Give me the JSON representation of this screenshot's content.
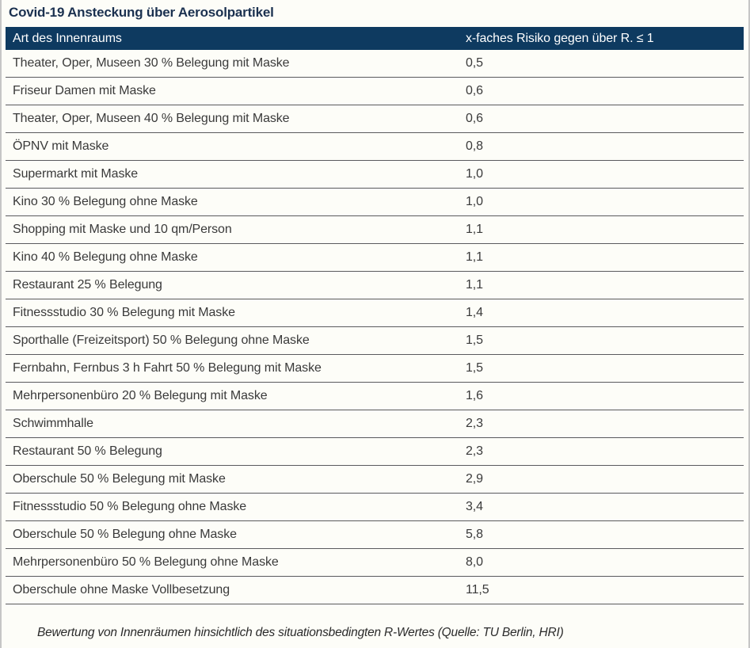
{
  "title": "Covid-19 Ansteckung über Aerosolpartikel",
  "table": {
    "columns": [
      "Art des Innenraums",
      "x-faches Risiko gegen über R. ≤ 1"
    ],
    "rows": [
      [
        "Theater, Oper, Museen 30 % Belegung mit Maske",
        "0,5"
      ],
      [
        "Friseur Damen mit Maske",
        "0,6"
      ],
      [
        "Theater, Oper, Museen 40 % Belegung mit Maske",
        "0,6"
      ],
      [
        "ÖPNV mit Maske",
        "0,8"
      ],
      [
        "Supermarkt mit Maske",
        "1,0"
      ],
      [
        "Kino 30 % Belegung ohne Maske",
        "1,0"
      ],
      [
        "Shopping mit Maske und 10 qm/Person",
        "1,1"
      ],
      [
        "Kino 40 % Belegung ohne Maske",
        "1,1"
      ],
      [
        "Restaurant 25 % Belegung",
        "1,1"
      ],
      [
        "Fitnessstudio 30 % Belegung mit Maske",
        "1,4"
      ],
      [
        "Sporthalle (Freizeitsport) 50 % Belegung ohne Maske",
        "1,5"
      ],
      [
        "Fernbahn, Fernbus 3 h Fahrt 50 % Belegung mit Maske",
        "1,5"
      ],
      [
        "Mehrpersonenbüro 20 % Belegung mit Maske",
        "1,6"
      ],
      [
        "Schwimmhalle",
        "2,3"
      ],
      [
        "Restaurant 50 % Belegung",
        "2,3"
      ],
      [
        "Oberschule 50 % Belegung mit Maske",
        "2,9"
      ],
      [
        "Fitnessstudio 50 % Belegung ohne Maske",
        "3,4"
      ],
      [
        "Oberschule 50 % Belegung ohne Maske",
        "5,8"
      ],
      [
        "Mehrpersonenbüro 50 % Belegung ohne Maske",
        "8,0"
      ],
      [
        "Oberschule ohne Maske Vollbesetzung",
        "11,5"
      ]
    ]
  },
  "caption": "Bewertung von Innenräumen hinsichtlich des situationsbedingten R-Wertes (Quelle: TU Berlin, HRI)",
  "colors": {
    "header_bg": "#0e3a60",
    "header_text": "#ffffff",
    "title_text": "#1b3150",
    "row_text": "#3a3a3a",
    "row_divider": "#5a5a5e",
    "page_bg": "#fdfdf8",
    "side_border": "#c6c6c6"
  },
  "chart_data": {
    "type": "table",
    "title": "Covid-19 Ansteckung über Aerosolpartikel",
    "columns": [
      "Art des Innenraums",
      "x-faches Risiko gegen über R. ≤ 1"
    ],
    "categories": [
      "Theater, Oper, Museen 30 % Belegung mit Maske",
      "Friseur Damen mit Maske",
      "Theater, Oper, Museen 40 % Belegung mit Maske",
      "ÖPNV mit Maske",
      "Supermarkt mit Maske",
      "Kino 30 % Belegung ohne Maske",
      "Shopping mit Maske und 10 qm/Person",
      "Kino 40 % Belegung ohne Maske",
      "Restaurant 25 % Belegung",
      "Fitnessstudio 30 % Belegung mit Maske",
      "Sporthalle (Freizeitsport) 50 % Belegung ohne Maske",
      "Fernbahn, Fernbus 3 h Fahrt 50 % Belegung mit Maske",
      "Mehrpersonenbüro 20 % Belegung mit Maske",
      "Schwimmhalle",
      "Restaurant 50 % Belegung",
      "Oberschule 50 % Belegung mit Maske",
      "Fitnessstudio 50 % Belegung ohne Maske",
      "Oberschule 50 % Belegung ohne Maske",
      "Mehrpersonenbüro 50 % Belegung ohne Maske",
      "Oberschule ohne Maske Vollbesetzung"
    ],
    "values": [
      0.5,
      0.6,
      0.6,
      0.8,
      1.0,
      1.0,
      1.1,
      1.1,
      1.1,
      1.4,
      1.5,
      1.5,
      1.6,
      2.3,
      2.3,
      2.9,
      3.4,
      5.8,
      8.0,
      11.5
    ],
    "caption": "Bewertung von Innenräumen hinsichtlich des situationsbedingten R-Wertes (Quelle: TU Berlin, HRI)"
  }
}
